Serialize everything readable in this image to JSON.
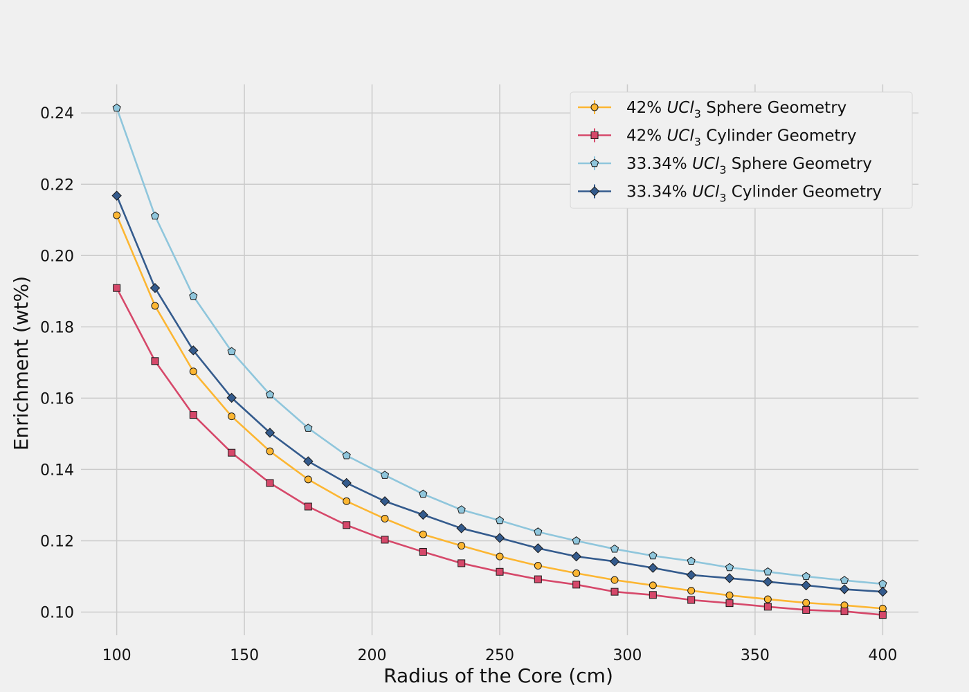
{
  "chart_data": {
    "type": "line",
    "title": "",
    "xlabel": "Radius of the Core (cm)",
    "ylabel": "Enrichment (wt%)",
    "xlim": [
      86,
      414
    ],
    "ylim": [
      0.0935,
      0.248
    ],
    "xticks": [
      100,
      150,
      200,
      250,
      300,
      350,
      400
    ],
    "yticks": [
      0.1,
      0.12,
      0.14,
      0.16,
      0.18,
      0.2,
      0.22,
      0.24
    ],
    "grid": true,
    "legend_position": "top-right",
    "x": [
      100,
      115,
      130,
      145,
      160,
      175,
      190,
      205,
      220,
      235,
      250,
      265,
      280,
      295,
      310,
      325,
      340,
      355,
      370,
      385,
      400
    ],
    "series": [
      {
        "name_prefix": "42% ",
        "name_formula": "UCl",
        "name_sub": "3",
        "name_suffix": " Sphere Geometry",
        "color": "#fcb632",
        "marker": "circle",
        "values": [
          0.2113,
          0.1859,
          0.1675,
          0.1549,
          0.1451,
          0.1372,
          0.1311,
          0.1262,
          0.1218,
          0.1186,
          0.1156,
          0.113,
          0.1109,
          0.109,
          0.1075,
          0.106,
          0.1047,
          0.1036,
          0.1026,
          0.1019,
          0.101
        ]
      },
      {
        "name_prefix": "42% ",
        "name_formula": "UCl",
        "name_sub": "3",
        "name_suffix": " Cylinder Geometry",
        "color": "#d6486a",
        "marker": "square",
        "values": [
          0.1909,
          0.1704,
          0.1553,
          0.1447,
          0.1362,
          0.1296,
          0.1244,
          0.1203,
          0.1169,
          0.1137,
          0.1113,
          0.1092,
          0.1077,
          0.1057,
          0.1048,
          0.1034,
          0.1025,
          0.1015,
          0.1006,
          0.1002,
          0.0992
        ]
      },
      {
        "name_prefix": "33.34% ",
        "name_formula": "UCl",
        "name_sub": "3",
        "name_suffix": " Sphere Geometry",
        "color": "#8fc6dc",
        "marker": "pentagon",
        "values": [
          0.2414,
          0.2111,
          0.1886,
          0.1731,
          0.161,
          0.1516,
          0.1439,
          0.1384,
          0.1331,
          0.1287,
          0.1257,
          0.1225,
          0.12,
          0.1177,
          0.1158,
          0.1143,
          0.1125,
          0.1113,
          0.11,
          0.1089,
          0.1079
        ]
      },
      {
        "name_prefix": "33.34% ",
        "name_formula": "UCl",
        "name_sub": "3",
        "name_suffix": " Cylinder Geometry",
        "color": "#345b8d",
        "marker": "diamond",
        "values": [
          0.2168,
          0.1909,
          0.1734,
          0.1601,
          0.1503,
          0.1423,
          0.1362,
          0.1311,
          0.1273,
          0.1235,
          0.1208,
          0.1179,
          0.1156,
          0.1142,
          0.1124,
          0.1104,
          0.1095,
          0.1085,
          0.1075,
          0.1064,
          0.1057
        ]
      }
    ]
  }
}
